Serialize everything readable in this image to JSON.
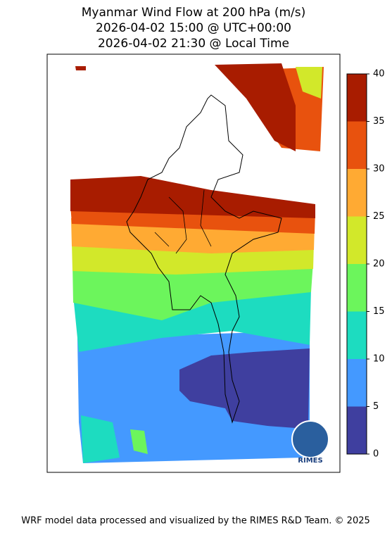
{
  "title": [
    "Myanmar Wind Flow at 200 hPa (m/s)",
    "2026-04-02 15:00 @ UTC+00:00",
    "2026-04-02 21:30 @ Local Time"
  ],
  "colorbar": {
    "levels": [
      0,
      5,
      10,
      15,
      20,
      25,
      30,
      35,
      40
    ],
    "colors": [
      "#3f3f9f",
      "#4499ff",
      "#1ddcc0",
      "#6cf55c",
      "#d2e82a",
      "#ffaa33",
      "#e8520e",
      "#a81c00"
    ]
  },
  "logo": "RIMES",
  "footer": "WRF model data processed and visualized by the RIMES R&D Team. © 2025"
}
